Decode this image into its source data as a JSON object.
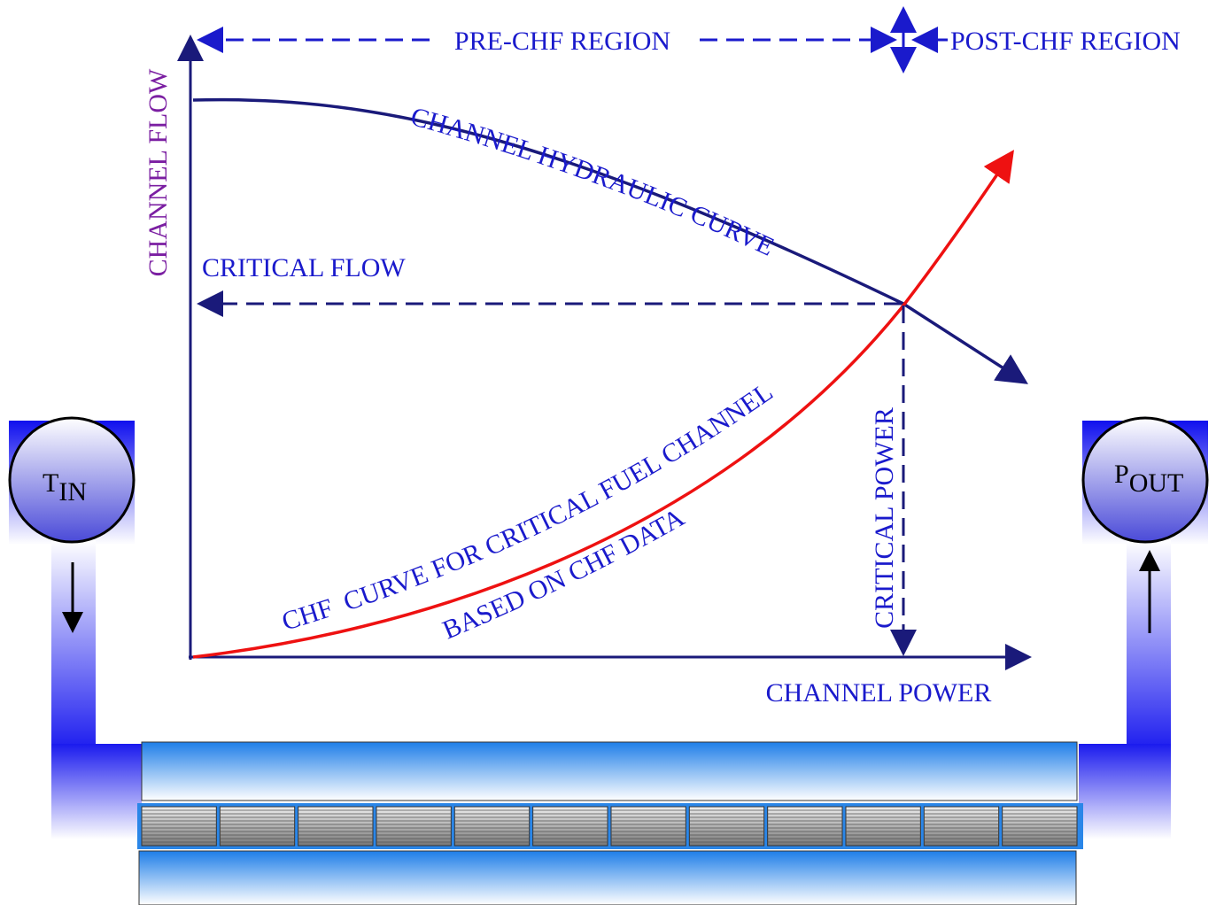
{
  "labels": {
    "pre_chf": "PRE-CHF REGION",
    "post_chf": "POST-CHF REGION",
    "y_axis": "CHANNEL FLOW",
    "hydraulic_curve": "CHANNEL HYDRAULIC CURVE",
    "critical_flow": "CRITICAL FLOW",
    "chf_curve_line1": "CHF  CURVE FOR CRITICAL FUEL CHANNEL",
    "chf_curve_line2": "BASED ON CHF DATA",
    "critical_power": "CRITICAL POWER",
    "x_axis": "CHANNEL POWER"
  },
  "inlet": {
    "symbol": "T",
    "subscript": "IN"
  },
  "outlet": {
    "symbol": "P",
    "subscript": "OUT"
  }
}
